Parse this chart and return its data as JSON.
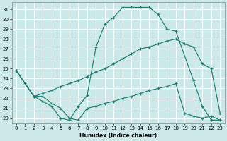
{
  "xlabel": "Humidex (Indice chaleur)",
  "bg_color": "#cce8e8",
  "grid_color": "#ffffff",
  "line_color": "#1e7b6e",
  "xlim": [
    -0.5,
    23.5
  ],
  "ylim": [
    19.5,
    31.7
  ],
  "xticks": [
    0,
    1,
    2,
    3,
    4,
    5,
    6,
    7,
    8,
    9,
    10,
    11,
    12,
    13,
    14,
    15,
    16,
    17,
    18,
    19,
    20,
    21,
    22,
    23
  ],
  "yticks": [
    20,
    21,
    22,
    23,
    24,
    25,
    26,
    27,
    28,
    29,
    30,
    31
  ],
  "curve_top_x": [
    0,
    1,
    2,
    3,
    4,
    5,
    6,
    7,
    8,
    9,
    10,
    11,
    12,
    13,
    14,
    15,
    16,
    17,
    18,
    20,
    21,
    22,
    23
  ],
  "curve_top_y": [
    24.8,
    23.5,
    22.2,
    21.7,
    21.2,
    20.0,
    19.8,
    21.2,
    22.3,
    27.2,
    29.5,
    30.2,
    31.2,
    31.2,
    31.2,
    31.2,
    30.5,
    29.0,
    28.8,
    23.8,
    21.2,
    19.8,
    19.8
  ],
  "curve_mid_x": [
    0,
    2,
    3,
    4,
    5,
    6,
    7,
    8,
    9,
    10,
    11,
    12,
    13,
    14,
    15,
    16,
    17,
    18,
    19,
    20,
    21,
    22,
    23
  ],
  "curve_mid_y": [
    24.8,
    22.2,
    22.5,
    22.8,
    23.2,
    23.5,
    23.8,
    24.2,
    24.7,
    25.0,
    25.5,
    26.0,
    26.5,
    27.0,
    27.2,
    27.5,
    27.8,
    28.0,
    27.5,
    27.2,
    25.5,
    25.0,
    20.5
  ],
  "curve_bot_x": [
    0,
    2,
    3,
    4,
    5,
    6,
    7,
    8,
    9,
    10,
    11,
    12,
    13,
    14,
    15,
    16,
    17,
    18,
    19,
    20,
    21,
    22,
    23
  ],
  "curve_bot_y": [
    24.8,
    22.2,
    22.2,
    21.5,
    21.0,
    20.0,
    19.8,
    21.0,
    21.2,
    21.5,
    21.7,
    22.0,
    22.2,
    22.5,
    22.8,
    23.0,
    23.2,
    23.5,
    20.5,
    20.2,
    20.0,
    20.2,
    19.8
  ]
}
